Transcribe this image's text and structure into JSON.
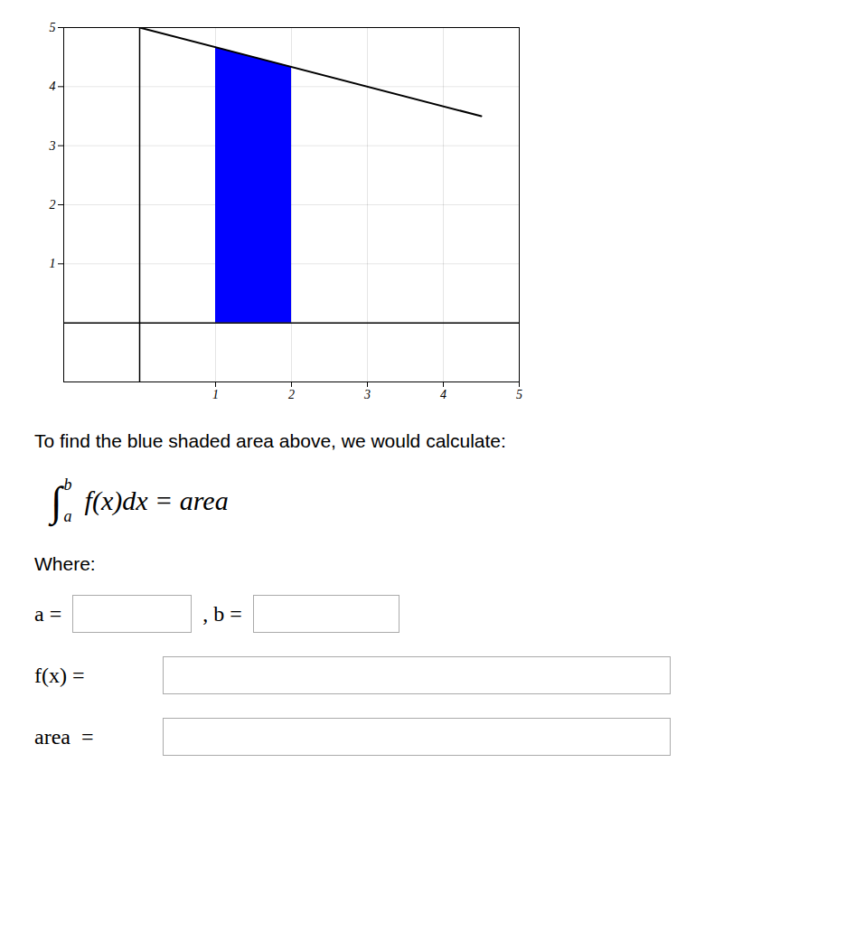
{
  "chart_data": {
    "type": "line",
    "x": [
      0,
      4.5
    ],
    "values": [
      5,
      3.5
    ],
    "color": "#000000",
    "shaded": {
      "x": [
        1,
        2
      ],
      "values": [
        4.666666666666667,
        4.333333333333333
      ],
      "color": "#0000FF"
    },
    "hlines": [
      0
    ],
    "vlines": [
      0
    ],
    "xlim": [
      -1,
      5
    ],
    "ylim": [
      -1,
      5
    ],
    "xticks": [
      1,
      2,
      3,
      4,
      5
    ],
    "yticks": [
      1,
      2,
      3,
      4,
      5
    ],
    "grid": true,
    "annotations": [
      "To find the blue shaded area above, we would calculate:",
      "Where:"
    ],
    "formula": {
      "symbol": "∫",
      "lower": "a",
      "upper": "b",
      "body": "f(x)dx  =  area"
    },
    "fields": [
      "a =",
      ", b =",
      "f(x) =",
      "area  ="
    ]
  }
}
